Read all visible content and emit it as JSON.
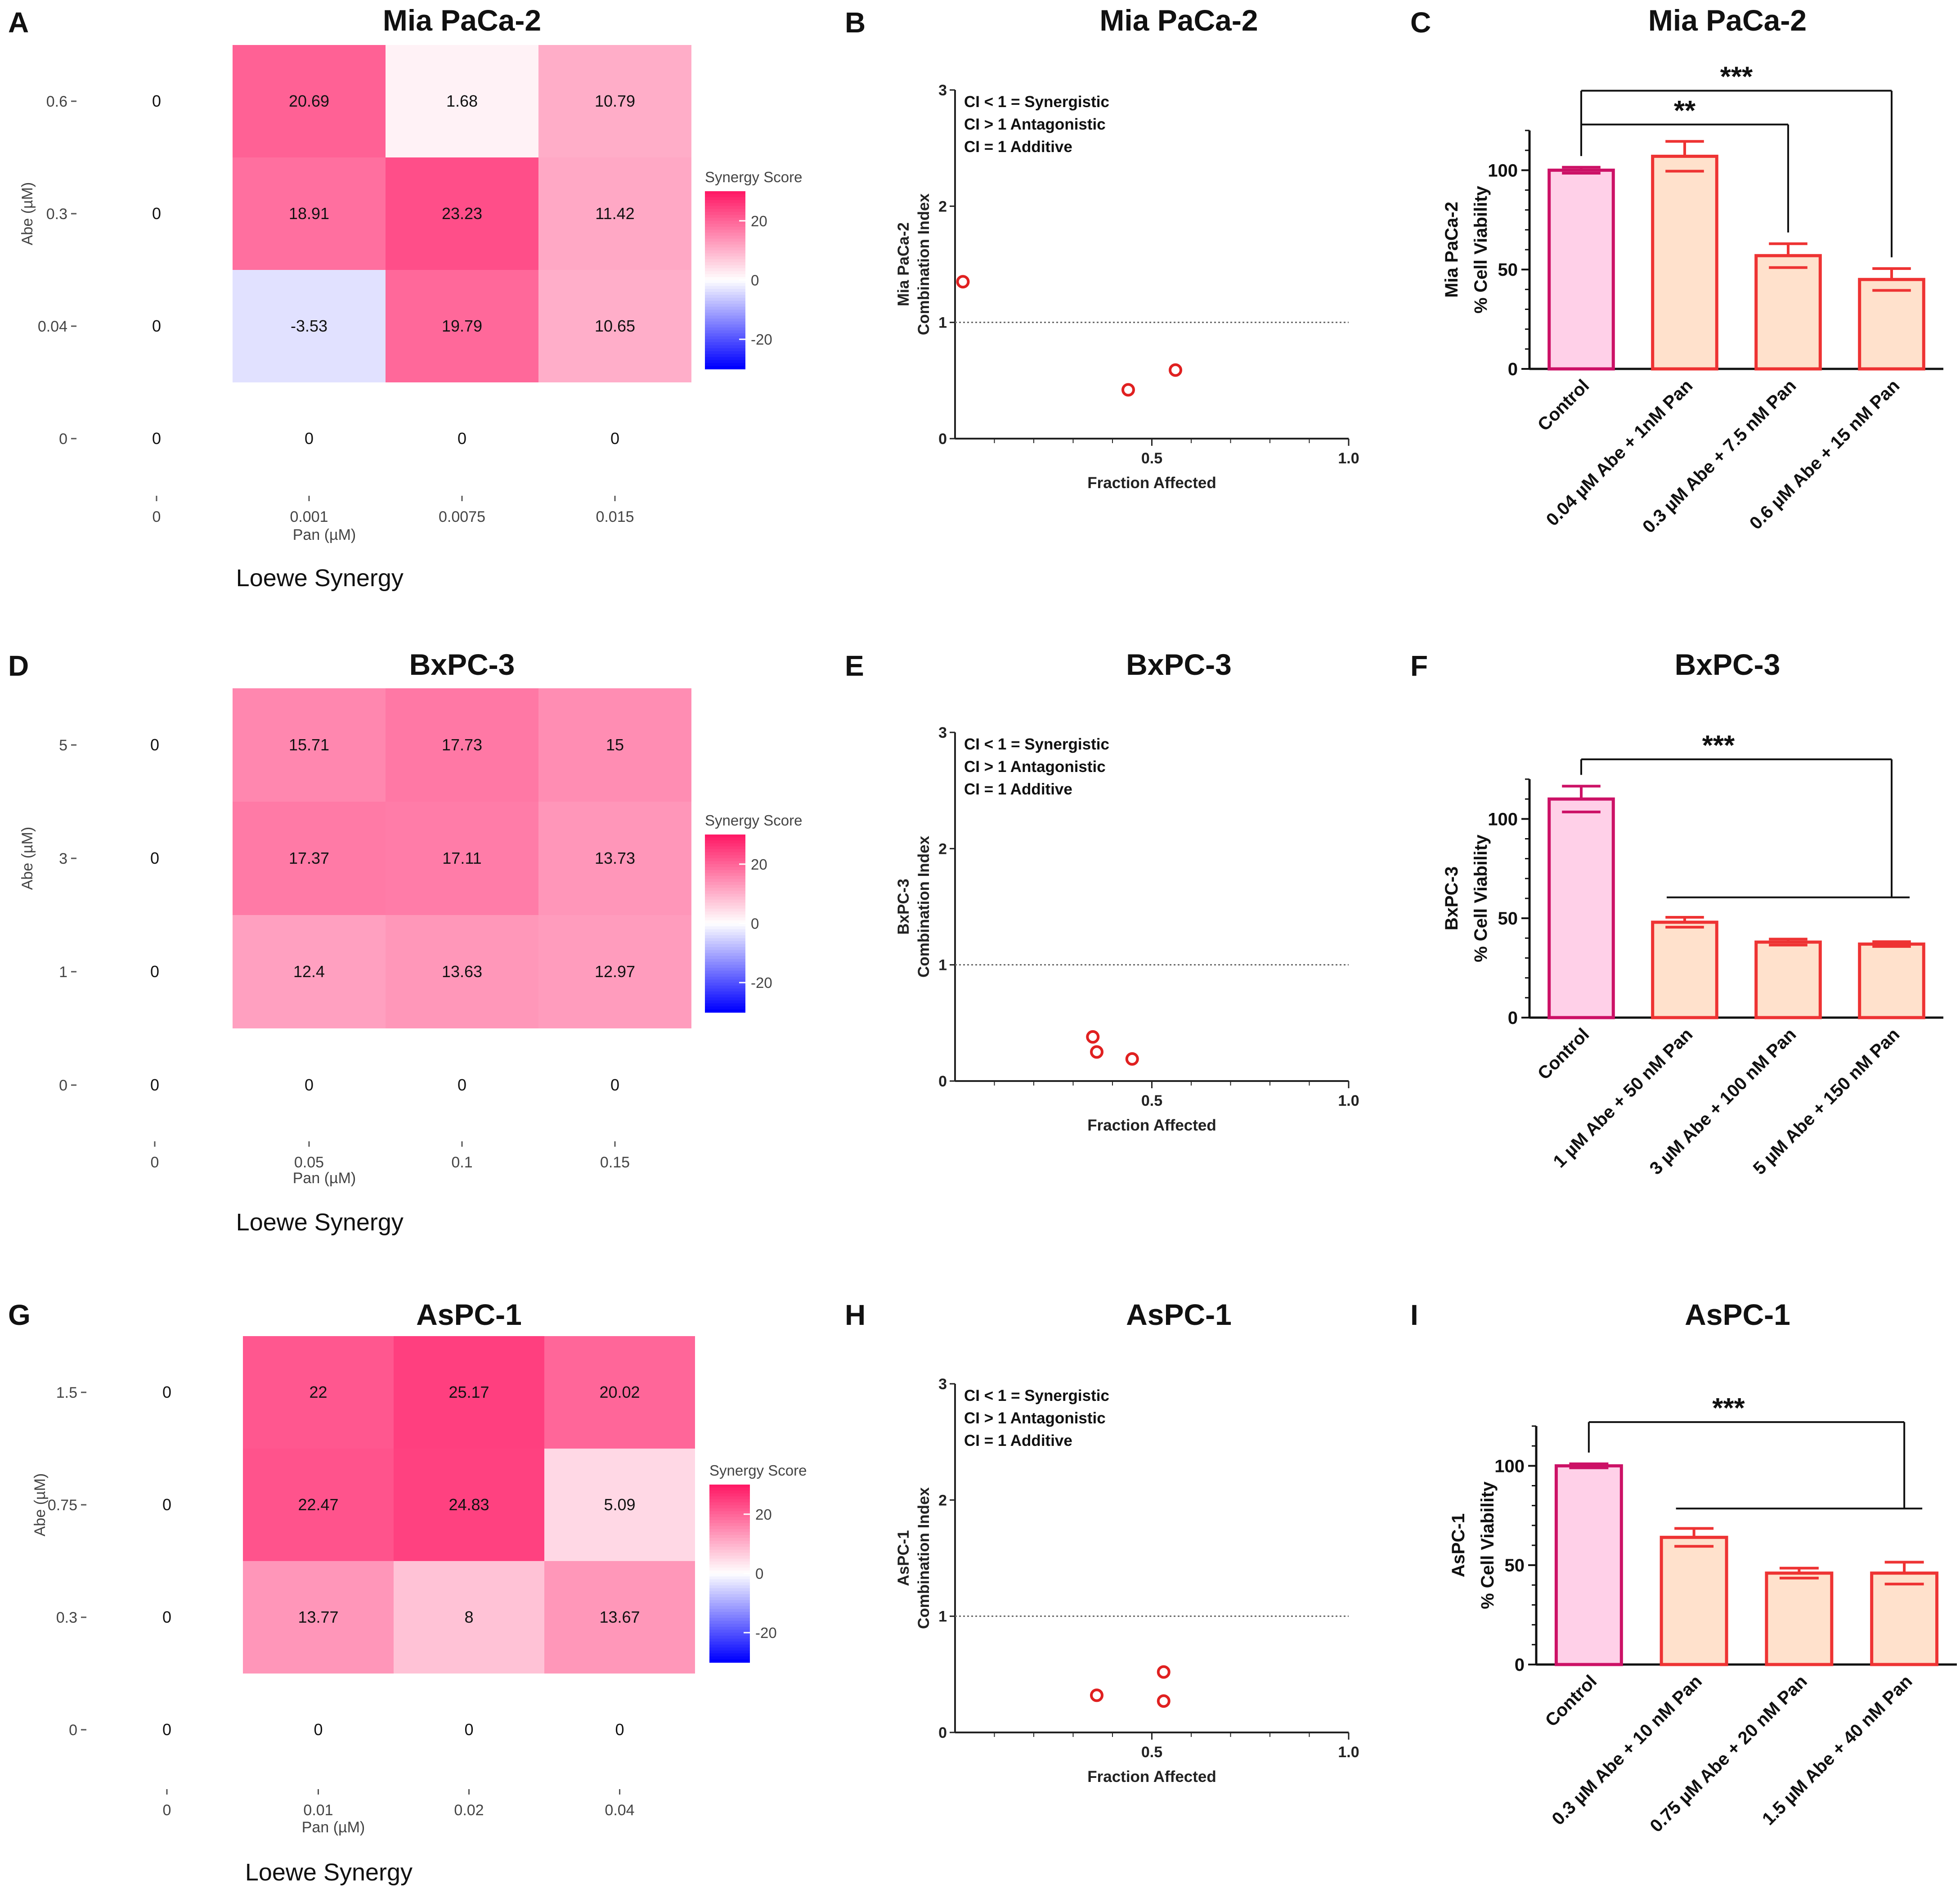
{
  "colors": {
    "cell_ramp_neg": "#0000ff",
    "cell_ramp_zero": "#ffffff",
    "cell_ramp_pos": "#ff1a66",
    "ci_point": "#e02020",
    "control_fill": "#ffd0e8",
    "control_stroke": "#cc1166",
    "combo_fill": "#ffe1cc",
    "combo_stroke": "#ee3333"
  },
  "chart_data": [
    {
      "panel": "A",
      "type": "heatmap",
      "title": "Mia PaCa-2",
      "xlabel": "Pan (µM)",
      "ylabel": "Abe (µM)",
      "method_label": "Loewe Synergy",
      "x_categories": [
        "0",
        "0.001",
        "0.0075",
        "0.015"
      ],
      "y_categories": [
        "0.6",
        "0.3",
        "0.04",
        "0"
      ],
      "values": [
        [
          0,
          20.69,
          1.68,
          10.79
        ],
        [
          0,
          18.91,
          23.23,
          11.42
        ],
        [
          0,
          -3.53,
          19.79,
          10.65
        ],
        [
          0,
          0,
          0,
          0
        ]
      ],
      "labels": [
        [
          "0",
          "20.69",
          "1.68",
          "10.79"
        ],
        [
          "0",
          "18.91",
          "23.23",
          "11.42"
        ],
        [
          "0",
          "-3.53",
          "19.79",
          "10.65"
        ],
        [
          "0",
          "0",
          "0",
          "0"
        ]
      ],
      "colorbar": {
        "title": "Synergy Score",
        "ticks": [
          "20",
          "0",
          "-20"
        ],
        "range": [
          -30,
          30
        ]
      }
    },
    {
      "panel": "B",
      "type": "scatter",
      "title": "Mia PaCa-2",
      "xlabel": "Fraction Affected",
      "ylabel": "Combination Index",
      "ylabel_top": "Mia PaCa-2",
      "xlim": [
        0,
        1.0
      ],
      "ylim": [
        0,
        3
      ],
      "x_ticks": [
        "0.5",
        "1.0"
      ],
      "y_ticks": [
        "0",
        "1",
        "2",
        "3"
      ],
      "reference_line": 1,
      "notes": [
        "CI < 1 = Synergistic",
        "CI > 1 Antagonistic",
        "CI = 1 Additive"
      ],
      "points": [
        {
          "x": 0.02,
          "y": 1.35
        },
        {
          "x": 0.44,
          "y": 0.42
        },
        {
          "x": 0.56,
          "y": 0.59
        }
      ]
    },
    {
      "panel": "C",
      "type": "bar",
      "title": "Mia PaCa-2",
      "ylabel": "% Cell Viability",
      "ylabel_top": "Mia PaCa-2",
      "ylim": [
        0,
        120
      ],
      "y_ticks": [
        "0",
        "50",
        "100"
      ],
      "categories": [
        "Control",
        "0.04 µM Abe + 1nM Pan",
        "0.3 µM Abe + 7.5 nM Pan",
        "0.6 µM Abe + 15 nM Pan"
      ],
      "values": [
        100,
        107,
        57,
        45
      ],
      "errors": [
        1.5,
        7.5,
        6,
        5.5
      ],
      "significance": [
        {
          "label": "***",
          "from": 0,
          "to": [
            3
          ],
          "level": 140
        },
        {
          "label": "**",
          "from": 0,
          "to": [
            2
          ],
          "level": 123
        }
      ]
    },
    {
      "panel": "D",
      "type": "heatmap",
      "title": "BxPC-3",
      "xlabel": "Pan (µM)",
      "ylabel": "Abe (µM)",
      "method_label": "Loewe Synergy",
      "x_categories": [
        "0",
        "0.05",
        "0.1",
        "0.15"
      ],
      "y_categories": [
        "5",
        "3",
        "1",
        "0"
      ],
      "values": [
        [
          0,
          15.71,
          17.73,
          15
        ],
        [
          0,
          17.37,
          17.11,
          13.73
        ],
        [
          0,
          12.4,
          13.63,
          12.97
        ],
        [
          0,
          0,
          0,
          0
        ]
      ],
      "labels": [
        [
          "0",
          "15.71",
          "17.73",
          "15"
        ],
        [
          "0",
          "17.37",
          "17.11",
          "13.73"
        ],
        [
          "0",
          "12.4",
          "13.63",
          "12.97"
        ],
        [
          "0",
          "0",
          "0",
          "0"
        ]
      ],
      "colorbar": {
        "title": "Synergy Score",
        "ticks": [
          "20",
          "0",
          "-20"
        ],
        "range": [
          -30,
          30
        ]
      }
    },
    {
      "panel": "E",
      "type": "scatter",
      "title": "BxPC-3",
      "xlabel": "Fraction Affected",
      "ylabel": "Combination Index",
      "ylabel_top": "BxPC-3",
      "xlim": [
        0,
        1.0
      ],
      "ylim": [
        0,
        3
      ],
      "x_ticks": [
        "0.5",
        "1.0"
      ],
      "y_ticks": [
        "0",
        "1",
        "2",
        "3"
      ],
      "reference_line": 1,
      "notes": [
        "CI < 1 = Synergistic",
        "CI > 1 Antagonistic",
        "CI = 1 Additive"
      ],
      "points": [
        {
          "x": 0.35,
          "y": 0.38
        },
        {
          "x": 0.36,
          "y": 0.25
        },
        {
          "x": 0.45,
          "y": 0.19
        }
      ]
    },
    {
      "panel": "F",
      "type": "bar",
      "title": "BxPC-3",
      "ylabel": "% Cell Viability",
      "ylabel_top": "BxPC-3",
      "ylim": [
        0,
        120
      ],
      "y_ticks": [
        "0",
        "50",
        "100"
      ],
      "categories": [
        "Control",
        "1 µM Abe + 50 nM Pan",
        "3 µM Abe + 100 nM Pan",
        "5 µM Abe + 150 nM Pan"
      ],
      "values": [
        110,
        48,
        38,
        37
      ],
      "errors": [
        6.5,
        2.5,
        1.5,
        1.2
      ],
      "significance": [
        {
          "label": "***",
          "from": 0,
          "to": [
            1,
            2,
            3
          ],
          "level": 130
        }
      ]
    },
    {
      "panel": "G",
      "type": "heatmap",
      "title": "AsPC-1",
      "xlabel": "Pan (µM)",
      "ylabel": "Abe (µM)",
      "method_label": "Loewe Synergy",
      "x_categories": [
        "0",
        "0.01",
        "0.02",
        "0.04"
      ],
      "y_categories": [
        "1.5",
        "0.75",
        "0.3",
        "0"
      ],
      "values": [
        [
          0,
          22,
          25.17,
          20.02
        ],
        [
          0,
          22.47,
          24.83,
          5.09
        ],
        [
          0,
          13.77,
          8,
          13.67
        ],
        [
          0,
          0,
          0,
          0
        ]
      ],
      "labels": [
        [
          "0",
          "22",
          "25.17",
          "20.02"
        ],
        [
          "0",
          "22.47",
          "24.83",
          "5.09"
        ],
        [
          "0",
          "13.77",
          "8",
          "13.67"
        ],
        [
          "0",
          "0",
          "0",
          "0"
        ]
      ],
      "colorbar": {
        "title": "Synergy Score",
        "ticks": [
          "20",
          "0",
          "-20"
        ],
        "range": [
          -30,
          30
        ]
      }
    },
    {
      "panel": "H",
      "type": "scatter",
      "title": "AsPC-1",
      "xlabel": "Fraction Affected",
      "ylabel": "Combination Index",
      "ylabel_top": "AsPC-1",
      "xlim": [
        0,
        1.0
      ],
      "ylim": [
        0,
        3
      ],
      "x_ticks": [
        "0.5",
        "1.0"
      ],
      "y_ticks": [
        "0",
        "1",
        "2",
        "3"
      ],
      "reference_line": 1,
      "notes": [
        "CI < 1 = Synergistic",
        "CI > 1 Antagonistic",
        "CI = 1 Additive"
      ],
      "points": [
        {
          "x": 0.36,
          "y": 0.32
        },
        {
          "x": 0.53,
          "y": 0.52
        },
        {
          "x": 0.53,
          "y": 0.27
        }
      ]
    },
    {
      "panel": "I",
      "type": "bar",
      "title": "AsPC-1",
      "ylabel": "% Cell Viability",
      "ylabel_top": "AsPC-1",
      "ylim": [
        0,
        120
      ],
      "y_ticks": [
        "0",
        "50",
        "100"
      ],
      "categories": [
        "Control",
        "0.3 µM Abe + 10 nM Pan",
        "0.75 µM Abe + 20 nM Pan",
        "1.5 µM Abe + 40 nM Pan"
      ],
      "values": [
        100,
        64,
        46,
        46
      ],
      "errors": [
        1,
        4.5,
        2.5,
        5.5
      ],
      "significance": [
        {
          "label": "***",
          "from": 0,
          "to": [
            1,
            2,
            3
          ],
          "level": 122
        }
      ]
    }
  ]
}
